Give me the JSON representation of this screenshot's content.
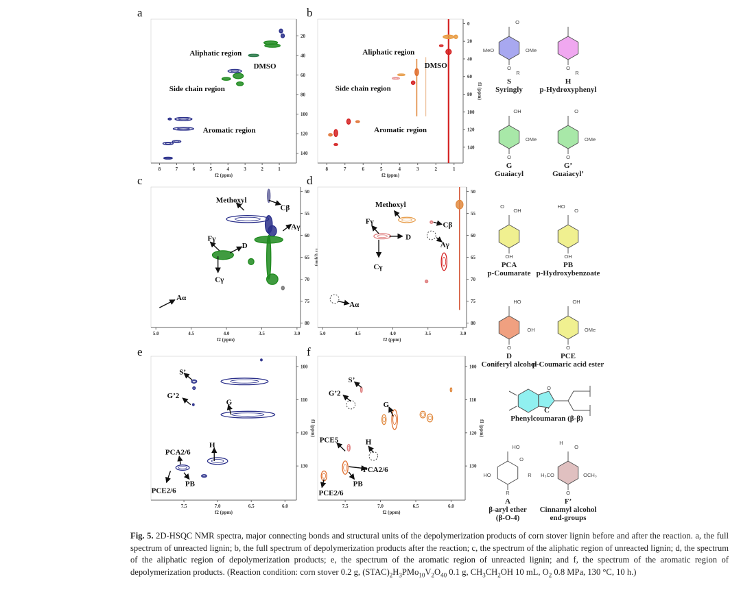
{
  "panels": [
    {
      "id": "a",
      "xlabel": "f2 (ppm)",
      "ylabel": "",
      "xlim": [
        8.5,
        0.0
      ],
      "ylim": [
        3,
        150
      ],
      "xticks": [
        8,
        7,
        6,
        5,
        4,
        3,
        2,
        1
      ],
      "yticks": [
        20,
        40,
        60,
        80,
        100,
        120,
        140
      ],
      "spots": [
        [
          1.5,
          27,
          0.4,
          1.8,
          "#1e8a1e",
          1
        ],
        [
          1.4,
          30,
          0.45,
          1.8,
          "#1e8a1e",
          1
        ],
        [
          2.5,
          40,
          0.3,
          1.2,
          "#2c7a4a",
          1
        ],
        [
          3.6,
          56,
          0.4,
          1.6,
          "#2a2f8a",
          0
        ],
        [
          3.4,
          61,
          0.3,
          2.8,
          "#1e8a1e",
          1
        ],
        [
          4.1,
          64,
          0.25,
          1.5,
          "#1e8a1e",
          1
        ],
        [
          3.3,
          69,
          0.2,
          2,
          "#1e8a1e",
          1
        ],
        [
          6.6,
          105,
          0.5,
          1.5,
          "#2a2f8a",
          0
        ],
        [
          7.4,
          105,
          0.1,
          1,
          "#2a2f8a",
          1
        ],
        [
          6.6,
          115,
          0.6,
          1.4,
          "#2a2f8a",
          0
        ],
        [
          7.5,
          130,
          0.3,
          1.2,
          "#2a2f8a",
          0
        ],
        [
          7.0,
          128,
          0.25,
          1,
          "#2a2f8a",
          0
        ],
        [
          7.5,
          145,
          0.25,
          1,
          "#2a2f8a",
          1
        ],
        [
          0.9,
          15,
          0.1,
          2,
          "#2a2f8a",
          1
        ],
        [
          0.8,
          20,
          0.1,
          2,
          "#2a2f8a",
          1
        ]
      ],
      "lines": [],
      "labels": [
        {
          "text": "Aliphatic region",
          "x": 4.72,
          "y": 37.4
        },
        {
          "text": "DMSO",
          "x": 1.84,
          "y": 50.7
        },
        {
          "text": "Side chain region",
          "x": 5.8,
          "y": 73.7
        },
        {
          "text": "Aromatic region",
          "x": 3.92,
          "y": 116
        }
      ],
      "arrows": [],
      "dashed": []
    },
    {
      "id": "b",
      "xlabel": "f2 (ppm)",
      "ylabel": "f1 (ppm)",
      "xlim": [
        8.5,
        0.5
      ],
      "ylim": [
        -5,
        158
      ],
      "xticks": [
        8,
        7,
        6,
        5,
        4,
        3,
        2,
        1
      ],
      "yticks": [
        0,
        20,
        40,
        60,
        80,
        100,
        120,
        140
      ],
      "spots": [
        [
          1.3,
          32,
          0.15,
          3,
          "#d42020",
          1
        ],
        [
          1.3,
          15,
          0.3,
          2,
          "#e89a40",
          1
        ],
        [
          0.9,
          15,
          0.1,
          2,
          "#e89a40",
          1
        ],
        [
          1.7,
          25,
          0.1,
          1,
          "#d42020",
          1
        ],
        [
          3.05,
          55,
          0.1,
          4,
          "#e07030",
          1
        ],
        [
          3.25,
          67,
          0.1,
          2,
          "#d42020",
          1
        ],
        [
          3.9,
          58,
          0.2,
          1,
          "#e8a050",
          1
        ],
        [
          4.2,
          62,
          0.2,
          1,
          "#e89090",
          0
        ],
        [
          6.8,
          111,
          0.1,
          3,
          "#d42020",
          1
        ],
        [
          7.5,
          124,
          0.1,
          4,
          "#d42020",
          1
        ],
        [
          7.8,
          126,
          0.1,
          1.5,
          "#e07030",
          1
        ],
        [
          7.5,
          137,
          0.1,
          1,
          "#d42020",
          1
        ],
        [
          6.3,
          111,
          0.1,
          1,
          "#e07030",
          1
        ]
      ],
      "lines": [
        [
          1.3,
          -5,
          158,
          "#d42020",
          2.2
        ],
        [
          3.05,
          40,
          105,
          "#e08a40",
          1.6
        ],
        [
          2.55,
          38,
          105,
          "#e8b080",
          1
        ]
      ],
      "labels": [
        {
          "text": "Aliphatic region",
          "x": 4.6,
          "y": 32
        },
        {
          "text": "DMSO",
          "x": 2.0,
          "y": 47
        },
        {
          "text": "Side chain region",
          "x": 6.0,
          "y": 73
        },
        {
          "text": "Aromatic region",
          "x": 3.95,
          "y": 120
        }
      ],
      "arrows": [],
      "dashed": []
    },
    {
      "id": "c",
      "xlabel": "f2 (ppm)",
      "ylabel": "f1 (ppm)",
      "xlim": [
        5.07,
        2.95
      ],
      "ylim": [
        49,
        81
      ],
      "xticks": [
        5.0,
        4.5,
        4.0,
        3.5,
        3.0
      ],
      "yticks": [
        50,
        55,
        60,
        65,
        70,
        75,
        80
      ],
      "spots": [
        [
          3.7,
          56.3,
          0.3,
          0.8,
          "#2a2f8a",
          0
        ],
        [
          3.4,
          57.5,
          0.05,
          2,
          "#2a2f8a",
          1
        ],
        [
          3.35,
          59,
          0.06,
          1.2,
          "#2a2f8a",
          1
        ],
        [
          3.4,
          51,
          0.02,
          1.5,
          "#6a6aa0",
          1
        ],
        [
          3.4,
          61,
          0.2,
          0.8,
          "#1e8a1e",
          1
        ],
        [
          3.4,
          65,
          0.03,
          5,
          "#1e8a1e",
          1
        ],
        [
          3.35,
          70,
          0.08,
          1.2,
          "#1e8a1e",
          1
        ],
        [
          4.05,
          64.5,
          0.15,
          1,
          "#1e8a1e",
          1
        ],
        [
          3.65,
          66,
          0.04,
          0.7,
          "#1e8a1e",
          1
        ],
        [
          3.2,
          72,
          0.02,
          0.4,
          "#777",
          1
        ]
      ],
      "lines": [],
      "labels": [
        {
          "text": "Methoxyl",
          "x": 3.93,
          "y": 51.9
        },
        {
          "text": "Cβ",
          "x": 3.17,
          "y": 53.6
        },
        {
          "text": "Aγ",
          "x": 3.02,
          "y": 58
        },
        {
          "text": "Fγ",
          "x": 4.21,
          "y": 60.6
        },
        {
          "text": "D",
          "x": 3.74,
          "y": 62.3
        },
        {
          "text": "Cγ",
          "x": 4.1,
          "y": 70
        },
        {
          "text": "Aα",
          "x": 4.64,
          "y": 74.1
        }
      ],
      "arrows": [
        [
          3.75,
          54.3,
          3.86,
          52.6
        ],
        [
          3.4,
          52,
          3.23,
          53
        ],
        [
          3.2,
          59,
          3.08,
          57.5
        ],
        [
          4.1,
          63.5,
          4.23,
          61.5
        ],
        [
          3.95,
          64,
          3.78,
          62.6
        ],
        [
          4.12,
          64.8,
          4.12,
          68.5
        ],
        [
          4.95,
          76.5,
          4.73,
          74.7
        ]
      ],
      "dashed": []
    },
    {
      "id": "d",
      "xlabel": "f2 (ppm)",
      "ylabel": "",
      "xlim": [
        5.07,
        2.95
      ],
      "ylim": [
        49,
        81
      ],
      "xticks": [
        5.0,
        4.5,
        4.0,
        3.5,
        3.0
      ],
      "yticks": [
        50,
        55,
        60,
        65,
        70,
        75,
        80
      ],
      "spots": [
        [
          3.05,
          53,
          0.05,
          1,
          "#e08a40",
          1
        ],
        [
          3.27,
          66,
          0.04,
          2,
          "#d42020",
          0
        ],
        [
          3.8,
          56.5,
          0.12,
          0.6,
          "#e8a050",
          0
        ],
        [
          4.15,
          60.2,
          0.12,
          0.6,
          "#e08080",
          0
        ],
        [
          3.45,
          57,
          0.02,
          0.3,
          "#e08080",
          0
        ],
        [
          3.52,
          70.5,
          0.02,
          0.3,
          "#e08080",
          1
        ]
      ],
      "lines": [
        [
          3.05,
          49,
          77,
          "#d45030",
          1.4
        ]
      ],
      "labels": [
        {
          "text": "Methoxyl",
          "x": 4.03,
          "y": 52.9
        },
        {
          "text": "Fγ",
          "x": 4.33,
          "y": 56.7
        },
        {
          "text": "D",
          "x": 3.78,
          "y": 60.3
        },
        {
          "text": "Cγ",
          "x": 4.21,
          "y": 67.1
        },
        {
          "text": "Cβ",
          "x": 3.22,
          "y": 57.5
        },
        {
          "text": "Aγ",
          "x": 3.26,
          "y": 62
        },
        {
          "text": "Aα",
          "x": 4.55,
          "y": 75.7
        }
      ],
      "arrows": [
        [
          3.9,
          56,
          3.98,
          54.4
        ],
        [
          4.2,
          59.6,
          4.3,
          57.8
        ],
        [
          4.05,
          60.2,
          3.86,
          60.2
        ],
        [
          4.2,
          61,
          4.2,
          65
        ],
        [
          3.42,
          57,
          3.3,
          57.5
        ],
        [
          3.38,
          60.5,
          3.3,
          61.5
        ],
        [
          4.78,
          75,
          4.62,
          75.6
        ]
      ],
      "dashed": [
        [
          3.45,
          60,
          0.06,
          1
        ],
        [
          4.83,
          74.5,
          0.06,
          1
        ]
      ]
    },
    {
      "id": "e",
      "xlabel": "f2 (ppm)",
      "ylabel": "f1 (ppm)",
      "xlim": [
        7.99,
        5.83
      ],
      "ylim": [
        96.9,
        140.3
      ],
      "xticks": [
        7.5,
        7.0,
        6.5,
        6.0
      ],
      "yticks": [
        100,
        110,
        120,
        130
      ],
      "spots": [
        [
          6.6,
          104.5,
          0.35,
          1,
          "#2a2f8a",
          0
        ],
        [
          7.35,
          104.5,
          0.04,
          0.5,
          "#2a2f8a",
          0
        ],
        [
          6.55,
          114.5,
          0.4,
          1,
          "#2a2f8a",
          0
        ],
        [
          7.0,
          128.5,
          0.15,
          1,
          "#2a2f8a",
          0
        ],
        [
          7.52,
          130.5,
          0.1,
          0.8,
          "#2a2f8a",
          0
        ],
        [
          7.2,
          133,
          0.04,
          0.4,
          "#2a2f8a",
          0
        ],
        [
          7.35,
          106.5,
          0.02,
          0.4,
          "#2a2f8a",
          0
        ],
        [
          6.35,
          98,
          0.01,
          0.3,
          "#2a2f8a",
          0
        ],
        [
          7.36,
          111.5,
          0.01,
          0.3,
          "#2a2f8a",
          1
        ]
      ],
      "lines": [],
      "labels": [
        {
          "text": "S’",
          "x": 7.52,
          "y": 101.6
        },
        {
          "text": "G’2",
          "x": 7.66,
          "y": 108.7
        },
        {
          "text": "G",
          "x": 6.83,
          "y": 110.6
        },
        {
          "text": "PCA2/6",
          "x": 7.59,
          "y": 125.7
        },
        {
          "text": "H",
          "x": 7.08,
          "y": 123.6
        },
        {
          "text": "PB",
          "x": 7.41,
          "y": 135.2
        },
        {
          "text": "PCE2/6",
          "x": 7.8,
          "y": 137.3
        }
      ],
      "arrows": [
        [
          7.38,
          104,
          7.5,
          102
        ],
        [
          7.4,
          111.5,
          7.52,
          109.5
        ],
        [
          6.8,
          114.5,
          6.84,
          111.5
        ],
        [
          7.55,
          129.5,
          7.57,
          127
        ],
        [
          7.05,
          128.5,
          7.05,
          124.5
        ],
        [
          7.5,
          132,
          7.42,
          134
        ],
        [
          7.7,
          131.5,
          7.76,
          135
        ]
      ],
      "dashed": []
    },
    {
      "id": "f",
      "xlabel": "f2 (ppm)",
      "ylabel": "f1 (ppm)",
      "xlim": [
        7.89,
        5.8
      ],
      "ylim": [
        96.9,
        140.3
      ],
      "xticks": [
        7.5,
        7.0,
        6.5,
        6.0
      ],
      "yticks": [
        100,
        110,
        120,
        130
      ],
      "spots": [
        [
          7.5,
          130.5,
          0.04,
          2,
          "#e07030",
          0
        ],
        [
          7.8,
          133,
          0.04,
          1.5,
          "#e07030",
          0
        ],
        [
          7.27,
          107,
          0.01,
          0.8,
          "#e08080",
          0
        ],
        [
          6.8,
          116,
          0.04,
          3,
          "#e07030",
          0
        ],
        [
          6.95,
          116,
          0.03,
          1.5,
          "#e08a40",
          0
        ],
        [
          6.4,
          114.5,
          0.04,
          1,
          "#e08a40",
          0
        ],
        [
          6.3,
          115.5,
          0.04,
          1.2,
          "#e08a40",
          0
        ],
        [
          6.0,
          107,
          0.01,
          0.6,
          "#e08a40",
          0
        ],
        [
          7.45,
          124.5,
          0.02,
          1,
          "#e08080",
          0
        ]
      ],
      "lines": [],
      "labels": [
        {
          "text": "S’",
          "x": 7.41,
          "y": 103.9
        },
        {
          "text": "G’2",
          "x": 7.65,
          "y": 108
        },
        {
          "text": "G",
          "x": 6.92,
          "y": 111.4
        },
        {
          "text": "PCE5",
          "x": 7.73,
          "y": 122
        },
        {
          "text": "H",
          "x": 7.17,
          "y": 122.6
        },
        {
          "text": "PCA2/6",
          "x": 7.07,
          "y": 131
        },
        {
          "text": "PB",
          "x": 7.32,
          "y": 135.2
        },
        {
          "text": "PCE2/6",
          "x": 7.7,
          "y": 138
        }
      ],
      "arrows": [
        [
          7.27,
          106.3,
          7.37,
          104.6
        ],
        [
          7.42,
          110.5,
          7.53,
          108.6
        ],
        [
          6.82,
          115,
          6.88,
          112.2
        ],
        [
          7.5,
          125.5,
          7.62,
          123
        ],
        [
          7.1,
          126,
          7.17,
          124
        ],
        [
          7.45,
          130.2,
          7.2,
          130.8
        ],
        [
          7.45,
          131.8,
          7.37,
          134
        ],
        [
          7.8,
          134,
          7.83,
          136.5
        ]
      ],
      "dashed": [
        [
          7.42,
          111.5,
          0.04,
          1.3
        ],
        [
          7.1,
          127,
          0.04,
          1.3
        ]
      ]
    }
  ],
  "structures": [
    {
      "code": "S",
      "name": "Syringly",
      "fill": "#a8a8f0",
      "subs": {
        "left": "MeO",
        "right": "OMe",
        "bottom": "O",
        "bottom2": "R",
        "top": "O"
      }
    },
    {
      "code": "H",
      "name": "p-Hydroxyphenyl",
      "fill": "#f0a8f0",
      "subs": {
        "bottom": "O",
        "bottom2": "R"
      }
    },
    {
      "code": "G",
      "name": "Guaiacyl",
      "fill": "#a8e8a8",
      "subs": {
        "right": "OMe",
        "bottom": "O",
        "top": "OH"
      }
    },
    {
      "code": "G’",
      "name": "Guaiacyl’",
      "fill": "#a8e8a8",
      "subs": {
        "right": "OMe",
        "bottom": "O",
        "top": "O"
      }
    },
    {
      "code": "PCA",
      "name": "p-Coumarate",
      "fill": "#f0f090",
      "subs": {
        "bottom": "OH",
        "top": "OH",
        "top2": "O"
      }
    },
    {
      "code": "PB",
      "name": "p-Hydroxybenzoate",
      "fill": "#f0f090",
      "subs": {
        "bottom": "OH",
        "top": "O",
        "top2": "HO"
      }
    },
    {
      "code": "D",
      "name": "Coniferyl alcohol",
      "fill": "#f0a080",
      "subs": {
        "right": "OH",
        "bottom": "O",
        "top": "HO"
      }
    },
    {
      "code": "PCE",
      "name": "p-Coumaric acid ester",
      "fill": "#f0f090",
      "subs": {
        "right": "OMe",
        "bottom": "O",
        "top": "OH"
      }
    },
    {
      "code": "C",
      "name": "Phenylcoumaran (β-β)",
      "fill": "#90f0f0",
      "subs": {
        "top": "O"
      }
    },
    {
      "code": "A",
      "name": "β-aryl ether",
      "name2": "(β-O-4)",
      "fill": "none",
      "subs": {
        "left": "HO",
        "top": "HO",
        "right": "R",
        "bottom": "R",
        "center": "O"
      }
    },
    {
      "code": "F’",
      "name": "Cinnamyl alcohol",
      "name2": "end-groups",
      "fill": "#e0c0c0",
      "subs": {
        "left": "H₃CO",
        "right": "OCH₃",
        "bottom": "O",
        "top": "O",
        "top2": "H"
      }
    }
  ],
  "caption": {
    "label": "Fig. 5.",
    "segments": [
      {
        "t": " 2D-HSQC NMR spectra, major connecting bonds and structural units of the depolymerization products of corn stover lignin before and after the reaction. a, the full spectrum of unreacted lignin; b, the full spectrum of depolymerization products after the reaction; c, the spectrum of the aliphatic region of unreacted lignin; d, the spectrum of the aliphatic region of depolymerization products; e, the spectrum of the aromatic region of unreacted lignin; and f, the spectrum of the aromatic region of depolymerization products. (Reaction condition: corn stover 0.2 g, (STAC)"
      },
      {
        "s": "2"
      },
      {
        "t": "H"
      },
      {
        "s": "3"
      },
      {
        "t": "PMo"
      },
      {
        "s": "10"
      },
      {
        "t": "V"
      },
      {
        "s": "2"
      },
      {
        "t": "O"
      },
      {
        "s": "40"
      },
      {
        "t": " 0.1 g, CH"
      },
      {
        "s": "3"
      },
      {
        "t": "CH"
      },
      {
        "s": "2"
      },
      {
        "t": "OH 10 mL, O"
      },
      {
        "s": "2"
      },
      {
        "t": " 0.8 MPa, 130 °C, 10 h.)"
      }
    ]
  }
}
